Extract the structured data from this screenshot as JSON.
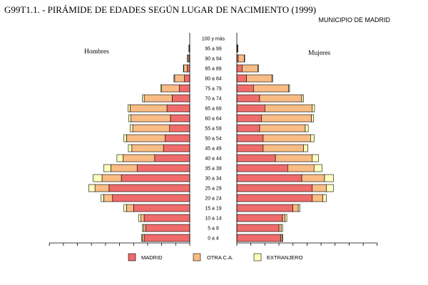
{
  "header": {
    "title": "G99T1.1. - PIRÁMIDE DE EDADES SEGÚN LUGAR DE NACIMIENTO (1999)",
    "subtitle": "MUNICIPIO DE MADRID"
  },
  "colors": {
    "madrid": "#f06b6b",
    "otra": "#f9bc85",
    "extranjero": "#ffffbd",
    "outline": "#000000"
  },
  "chart_data": {
    "type": "bar",
    "orientation": "horizontal-population-pyramid",
    "title": "G99T1.1. - PIRÁMIDE DE EDADES SEGÚN LUGAR DE NACIMIENTO (1999)",
    "subtitle": "MUNICIPIO DE MADRID",
    "side_labels": {
      "left": "Hombres",
      "right": "Mujeres"
    },
    "categories": [
      "100 y más",
      "95 a 99",
      "90 a 94",
      "85 a 89",
      "80 a 84",
      "75 a 79",
      "70 a 74",
      "65 a 69",
      "60 a 64",
      "55 a 59",
      "50 a 54",
      "45 a 49",
      "40 a 44",
      "35 a 39",
      "30 a 34",
      "25 a 29",
      "20 a 24",
      "15 a 19",
      "10 a 14",
      "5 a 9",
      "0 a 4"
    ],
    "stack_order": [
      "MADRID",
      "OTRA C.A.",
      "EXTRANJERO"
    ],
    "legend": [
      "MADRID",
      "OTRA C.A.",
      "EXTRANJERO"
    ],
    "legend_position": "bottom",
    "xlim": [
      -8,
      8
    ],
    "x_ticks_interval": 0.8,
    "grid": false,
    "series": [
      {
        "name": "MADRID",
        "side": "Hombres",
        "values": [
          0.0,
          0.02,
          0.05,
          0.14,
          0.3,
          0.6,
          1.0,
          1.3,
          1.1,
          1.15,
          1.4,
          1.5,
          2.0,
          3.0,
          3.9,
          4.6,
          4.4,
          3.2,
          2.6,
          2.5,
          2.6
        ]
      },
      {
        "name": "OTRA C.A.",
        "side": "Hombres",
        "values": [
          0.0,
          0.03,
          0.08,
          0.2,
          0.56,
          1.0,
          1.6,
          2.1,
          2.25,
          2.1,
          2.2,
          1.8,
          1.8,
          1.5,
          1.1,
          0.8,
          0.5,
          0.4,
          0.18,
          0.13,
          0.1
        ]
      },
      {
        "name": "EXTRANJERO",
        "side": "Hombres",
        "values": [
          0.0,
          0.0,
          0.01,
          0.02,
          0.04,
          0.06,
          0.1,
          0.12,
          0.12,
          0.15,
          0.15,
          0.2,
          0.35,
          0.4,
          0.5,
          0.35,
          0.15,
          0.15,
          0.12,
          0.08,
          0.04
        ]
      },
      {
        "name": "MADRID",
        "side": "Mujeres",
        "values": [
          0.0,
          0.03,
          0.08,
          0.3,
          0.55,
          0.95,
          1.3,
          1.6,
          1.4,
          1.3,
          1.5,
          1.5,
          2.2,
          2.9,
          3.7,
          4.3,
          4.3,
          3.2,
          2.6,
          2.4,
          2.5
        ]
      },
      {
        "name": "OTRA C.A.",
        "side": "Mujeres",
        "values": [
          0.0,
          0.04,
          0.35,
          0.9,
          1.45,
          2.0,
          2.4,
          2.7,
          2.85,
          2.6,
          2.7,
          2.3,
          2.1,
          1.5,
          1.3,
          0.8,
          0.6,
          0.3,
          0.15,
          0.13,
          0.08
        ]
      },
      {
        "name": "EXTRANJERO",
        "side": "Mujeres",
        "values": [
          0.0,
          0.0,
          0.02,
          0.03,
          0.04,
          0.06,
          0.1,
          0.13,
          0.13,
          0.17,
          0.2,
          0.25,
          0.35,
          0.45,
          0.5,
          0.4,
          0.2,
          0.1,
          0.1,
          0.08,
          0.04
        ]
      }
    ]
  }
}
